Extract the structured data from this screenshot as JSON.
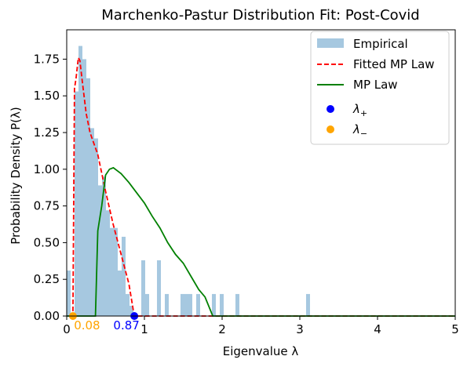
{
  "chart_data": {
    "type": "bar",
    "title": "Marchenko-Pastur Distribution Fit: Post-Covid",
    "xlabel": "Eigenvalue λ",
    "ylabel": "Probability Density P(λ)",
    "xlim": [
      0,
      5
    ],
    "ylim": [
      0,
      1.95
    ],
    "x_ticks": [
      "0",
      "1",
      "2",
      "3",
      "4",
      "5"
    ],
    "y_ticks": [
      "0.00",
      "0.25",
      "0.50",
      "0.75",
      "1.00",
      "1.25",
      "1.50",
      "1.75"
    ],
    "legend_position": "top-right",
    "grid": false,
    "colors": {
      "empirical": "#a6c8e0",
      "fitted": "#ff0000",
      "mp": "#008000",
      "lambda_plus": "#0000ff",
      "lambda_minus": "#ffa500"
    },
    "histogram": {
      "name": "Empirical",
      "bin_width": 0.0505,
      "bins": [
        {
          "x": 0.0,
          "y": 0.31
        },
        {
          "x": 0.0505,
          "y": 0.0
        },
        {
          "x": 0.101,
          "y": 1.53
        },
        {
          "x": 0.1515,
          "y": 1.84
        },
        {
          "x": 0.202,
          "y": 1.75
        },
        {
          "x": 0.2525,
          "y": 1.62
        },
        {
          "x": 0.303,
          "y": 1.28
        },
        {
          "x": 0.3535,
          "y": 1.21
        },
        {
          "x": 0.404,
          "y": 0.89
        },
        {
          "x": 0.4545,
          "y": 0.95
        },
        {
          "x": 0.505,
          "y": 0.72
        },
        {
          "x": 0.5555,
          "y": 0.6
        },
        {
          "x": 0.606,
          "y": 0.6
        },
        {
          "x": 0.6565,
          "y": 0.31
        },
        {
          "x": 0.707,
          "y": 0.54
        },
        {
          "x": 0.7575,
          "y": 0.15
        },
        {
          "x": 0.808,
          "y": 0.07
        },
        {
          "x": 0.9595,
          "y": 0.38
        },
        {
          "x": 1.01,
          "y": 0.15
        },
        {
          "x": 1.1615,
          "y": 0.38
        },
        {
          "x": 1.2625,
          "y": 0.15
        },
        {
          "x": 1.4645,
          "y": 0.15
        },
        {
          "x": 1.515,
          "y": 0.15
        },
        {
          "x": 1.5655,
          "y": 0.15
        },
        {
          "x": 1.6665,
          "y": 0.15
        },
        {
          "x": 1.8685,
          "y": 0.15
        },
        {
          "x": 1.9695,
          "y": 0.15
        },
        {
          "x": 2.1715,
          "y": 0.15
        },
        {
          "x": 3.0805,
          "y": 0.15
        }
      ]
    },
    "series": [
      {
        "name": "Fitted MP Law",
        "style": "dashed",
        "x": [
          0.05,
          0.08,
          0.1,
          0.12,
          0.15,
          0.17,
          0.2,
          0.25,
          0.3,
          0.4,
          0.5,
          0.6,
          0.7,
          0.8,
          0.87,
          0.9,
          1.0,
          2.0,
          3.0,
          4.0,
          5.0
        ],
        "y": [
          0.0,
          0.0,
          1.55,
          1.62,
          1.76,
          1.74,
          1.6,
          1.38,
          1.25,
          1.1,
          0.85,
          0.62,
          0.42,
          0.22,
          0.0,
          0.0,
          0.0,
          0.0,
          0.0,
          0.0,
          0.0
        ]
      },
      {
        "name": "MP Law",
        "style": "solid",
        "x": [
          0.0,
          0.37,
          0.4,
          0.45,
          0.5,
          0.55,
          0.6,
          0.65,
          0.7,
          0.8,
          0.9,
          1.0,
          1.1,
          1.2,
          1.3,
          1.4,
          1.5,
          1.6,
          1.7,
          1.78,
          1.88,
          2.0,
          3.0,
          4.0,
          5.0
        ],
        "y": [
          0.0,
          0.0,
          0.58,
          0.75,
          0.96,
          1.0,
          1.01,
          0.99,
          0.97,
          0.91,
          0.84,
          0.77,
          0.68,
          0.6,
          0.5,
          0.42,
          0.36,
          0.27,
          0.18,
          0.13,
          0.0,
          0.0,
          0.0,
          0.0,
          0.0
        ]
      }
    ],
    "points": [
      {
        "name": "λ+",
        "x": 0.87,
        "y": 0.0,
        "label": "0.87"
      },
      {
        "name": "λ−",
        "x": 0.08,
        "y": 0.0,
        "label": "0.08"
      }
    ]
  }
}
